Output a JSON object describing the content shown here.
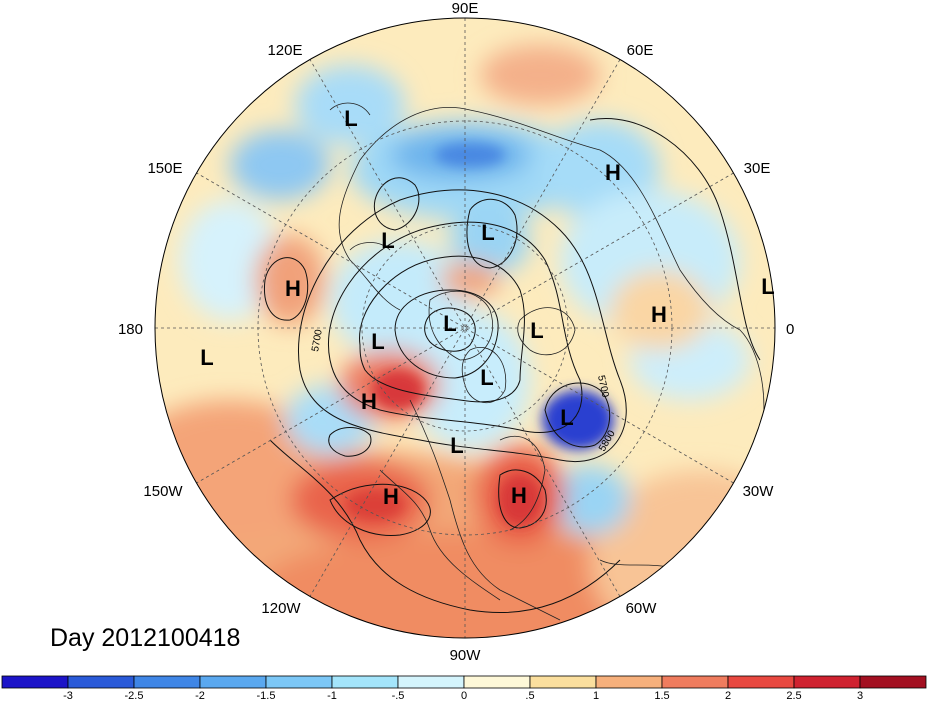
{
  "title": "Day 2012100418",
  "longitude_labels": [
    {
      "id": "lon-90e",
      "text": "90E"
    },
    {
      "id": "lon-60e",
      "text": "60E"
    },
    {
      "id": "lon-30e",
      "text": "30E"
    },
    {
      "id": "lon-0",
      "text": "0"
    },
    {
      "id": "lon-30w",
      "text": "30W"
    },
    {
      "id": "lon-60w",
      "text": "60W"
    },
    {
      "id": "lon-90w",
      "text": "90W"
    },
    {
      "id": "lon-120w",
      "text": "120W"
    },
    {
      "id": "lon-150w",
      "text": "150W"
    },
    {
      "id": "lon-180",
      "text": "180"
    },
    {
      "id": "lon-150e",
      "text": "150E"
    },
    {
      "id": "lon-120e",
      "text": "120E"
    }
  ],
  "pressure_centers": [
    {
      "id": "c1",
      "text": "L"
    },
    {
      "id": "c2",
      "text": "H"
    },
    {
      "id": "c3",
      "text": "L"
    },
    {
      "id": "c4",
      "text": "L"
    },
    {
      "id": "c5",
      "text": "H"
    },
    {
      "id": "c6",
      "text": "L"
    },
    {
      "id": "c7",
      "text": "H"
    },
    {
      "id": "c8",
      "text": "L"
    },
    {
      "id": "c9",
      "text": "L"
    },
    {
      "id": "c10",
      "text": "L"
    },
    {
      "id": "c11",
      "text": "L"
    },
    {
      "id": "c12",
      "text": "H"
    },
    {
      "id": "c13",
      "text": "L"
    },
    {
      "id": "c14",
      "text": "L"
    },
    {
      "id": "c15",
      "text": "L"
    },
    {
      "id": "c16",
      "text": "H"
    },
    {
      "id": "c17",
      "text": "H"
    },
    {
      "id": "c18",
      "text": "L"
    }
  ],
  "contour_labels": [
    "5700",
    "5700",
    "5800"
  ],
  "colorbar": {
    "colors": [
      "#1c14c8",
      "#2a5ad8",
      "#3f86e6",
      "#5aa8ef",
      "#7cc7f6",
      "#a4e5fb",
      "#d4f4fc",
      "#fef8d8",
      "#fbdf9e",
      "#f6b07c",
      "#ef7c5e",
      "#e84840",
      "#cf2230",
      "#a31021"
    ],
    "tick_labels": [
      "-3",
      "-2.5",
      "-2",
      "-1.5",
      "-1",
      "-.5",
      "0",
      ".5",
      "1",
      "1.5",
      "2",
      "2.5",
      "3"
    ]
  }
}
